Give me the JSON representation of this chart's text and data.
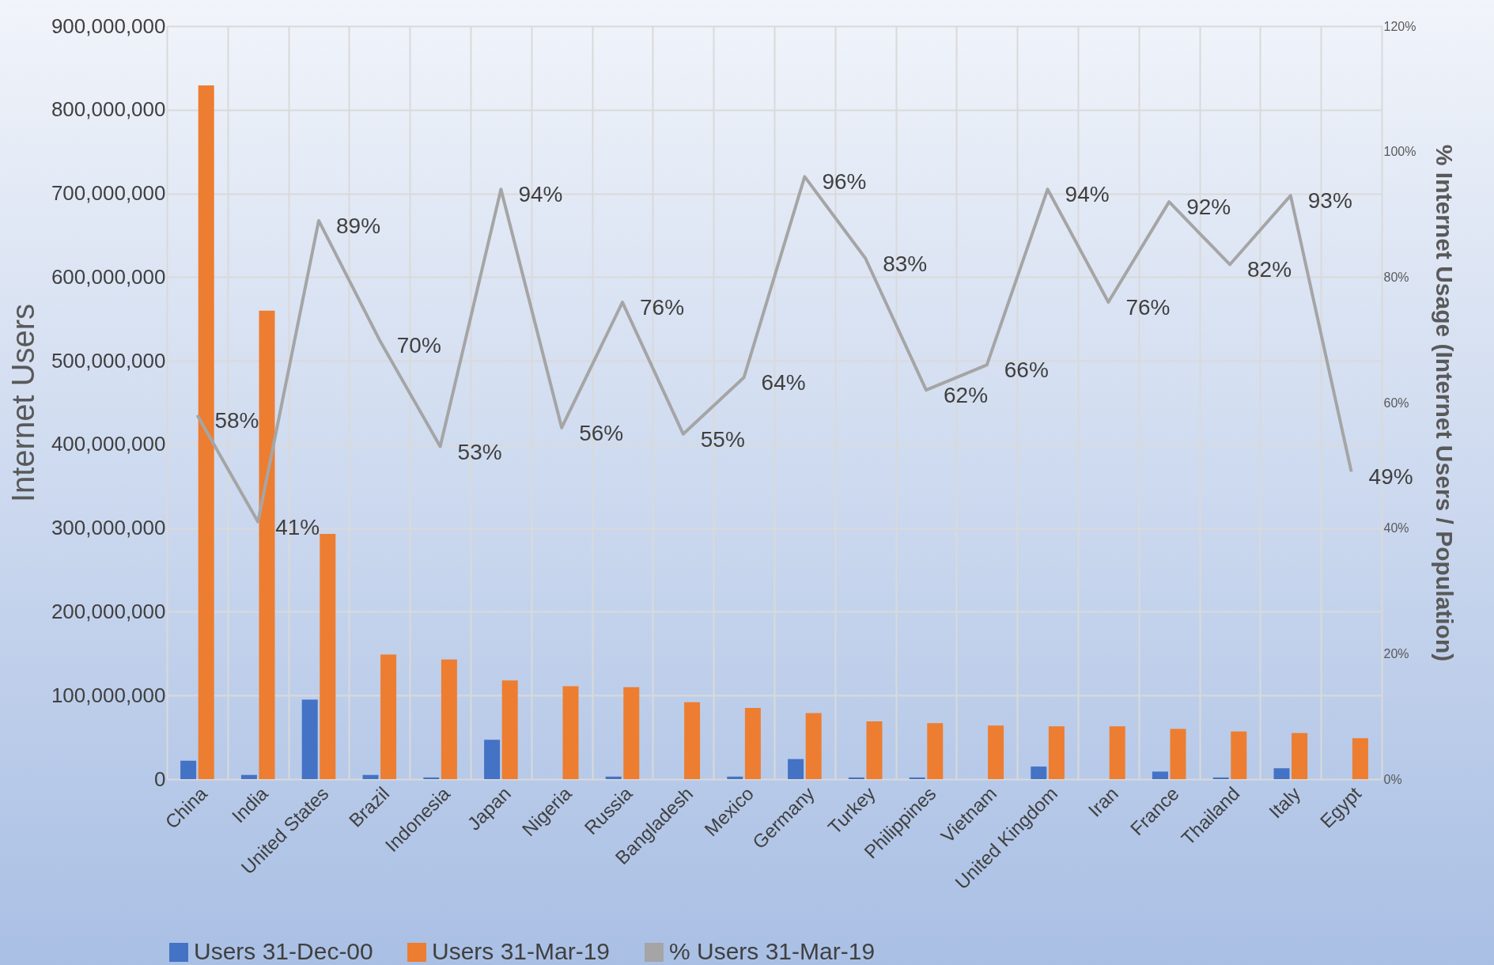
{
  "chart_data": {
    "type": "bar",
    "ylabel": "Internet Users",
    "y2label": "% Internet Usage (Internet Users / Population)",
    "categories": [
      "China",
      "India",
      "United States",
      "Brazil",
      "Indonesia",
      "Japan",
      "Nigeria",
      "Russia",
      "Bangladesh",
      "Mexico",
      "Germany",
      "Turkey",
      "Philippines",
      "Vietnam",
      "United Kingdom",
      "Iran",
      "France",
      "Thailand",
      "Italy",
      "Egypt"
    ],
    "series": [
      {
        "name": "Users 31-Dec-00",
        "color": "#4472c4",
        "values": [
          22000000,
          5000000,
          95000000,
          5000000,
          2000000,
          47000000,
          0,
          3000000,
          0,
          3000000,
          24000000,
          2000000,
          2000000,
          0,
          15000000,
          0,
          9000000,
          2000000,
          13000000,
          0
        ]
      },
      {
        "name": "Users 31-Mar-19",
        "color": "#ed7d31",
        "values": [
          829000000,
          560000000,
          293000000,
          149000000,
          143000000,
          118000000,
          111000000,
          110000000,
          92000000,
          85000000,
          79000000,
          69000000,
          67000000,
          64000000,
          63000000,
          63000000,
          60000000,
          57000000,
          55000000,
          49000000
        ]
      },
      {
        "name": "% Users 31-Mar-19",
        "type": "line",
        "axis": "y2",
        "color": "#a5a5a5",
        "values": [
          58,
          41,
          89,
          70,
          53,
          94,
          56,
          76,
          55,
          64,
          96,
          83,
          62,
          66,
          94,
          76,
          92,
          82,
          93,
          49
        ],
        "value_labels": [
          "58%",
          "41%",
          "89%",
          "70%",
          "53%",
          "94%",
          "56%",
          "76%",
          "55%",
          "64%",
          "96%",
          "83%",
          "62%",
          "66%",
          "94%",
          "76%",
          "92%",
          "82%",
          "93%",
          "49%"
        ]
      }
    ],
    "ylim": [
      0,
      900000000
    ],
    "yticks": [
      {
        "value": 0,
        "label": "0"
      },
      {
        "value": 100000000,
        "label": "100,000,000"
      },
      {
        "value": 200000000,
        "label": "200,000,000"
      },
      {
        "value": 300000000,
        "label": "300,000,000"
      },
      {
        "value": 400000000,
        "label": "400,000,000"
      },
      {
        "value": 500000000,
        "label": "500,000,000"
      },
      {
        "value": 600000000,
        "label": "600,000,000"
      },
      {
        "value": 700000000,
        "label": "700,000,000"
      },
      {
        "value": 800000000,
        "label": "800,000,000"
      },
      {
        "value": 900000000,
        "label": "900,000,000"
      }
    ],
    "y2lim": [
      0,
      120
    ],
    "y2ticks": [
      {
        "value": 0,
        "label": "0%"
      },
      {
        "value": 20,
        "label": "20%"
      },
      {
        "value": 40,
        "label": "40%"
      },
      {
        "value": 60,
        "label": "60%"
      },
      {
        "value": 80,
        "label": "80%"
      },
      {
        "value": 100,
        "label": "100%"
      },
      {
        "value": 120,
        "label": "120%"
      }
    ],
    "grid": true,
    "legend": "bottom"
  }
}
